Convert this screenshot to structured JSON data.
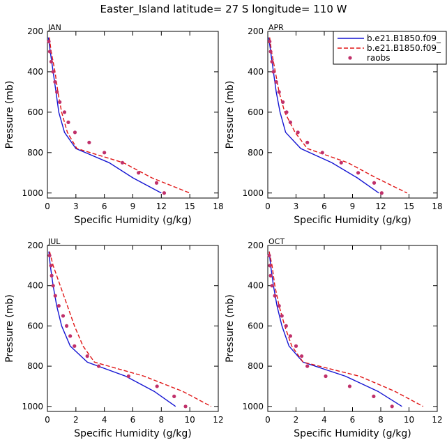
{
  "title": "Easter_Island  latitude= 27 S longitude= 110 W",
  "colors": {
    "model1": "#1414d2",
    "model2": "#e01414",
    "obs": "#c0306a",
    "axis": "#000000"
  },
  "legend": [
    {
      "label": "b.e21.B1850.f09_",
      "style": "solid",
      "color": "#1414d2"
    },
    {
      "label": "b.e21.B1850.f09_",
      "style": "dashed",
      "color": "#e01414"
    },
    {
      "label": "raobs",
      "style": "marker",
      "color": "#c0306a"
    }
  ],
  "chart_data": [
    {
      "type": "line",
      "month": "JAN",
      "xlabel": "Specific Humidity (g/kg)",
      "ylabel": "Pressure (mb)",
      "xlim": [
        0,
        18
      ],
      "ylim": [
        1025,
        200
      ],
      "xticks": [
        0,
        3,
        6,
        9,
        12,
        15,
        18
      ],
      "yticks": [
        200,
        400,
        600,
        800,
        1000
      ],
      "pressure": [
        230,
        300,
        400,
        500,
        600,
        700,
        780,
        850,
        925,
        1000
      ],
      "series": [
        {
          "name": "b.e21.B1850.f09_",
          "style": "solid",
          "values": [
            0.1,
            0.3,
            0.6,
            0.9,
            1.2,
            1.8,
            3.0,
            6.5,
            9.0,
            12.0
          ]
        },
        {
          "name": "b.e21.B1850.f09_",
          "style": "dashed",
          "values": [
            0.2,
            0.4,
            0.8,
            1.1,
            1.5,
            2.1,
            3.1,
            8.0,
            11.0,
            15.0
          ]
        }
      ],
      "raobs": {
        "pressure": [
          250,
          300,
          350,
          400,
          450,
          500,
          550,
          600,
          650,
          700,
          750,
          800,
          850,
          900,
          950,
          1000
        ],
        "values": [
          0.15,
          0.25,
          0.4,
          0.6,
          0.8,
          1.0,
          1.3,
          1.8,
          2.2,
          2.9,
          4.4,
          6.0,
          7.9,
          9.6,
          11.5,
          12.3
        ]
      }
    },
    {
      "type": "line",
      "month": "APR",
      "xlabel": "Specific Humidity (g/kg)",
      "ylabel": "Pressure (mb)",
      "xlim": [
        0,
        18
      ],
      "ylim": [
        1025,
        200
      ],
      "xticks": [
        0,
        3,
        6,
        9,
        12,
        15,
        18
      ],
      "yticks": [
        200,
        400,
        600,
        800,
        1000
      ],
      "pressure": [
        230,
        300,
        400,
        500,
        600,
        700,
        780,
        850,
        925,
        1000
      ],
      "series": [
        {
          "name": "b.e21.B1850.f09_",
          "style": "solid",
          "values": [
            0.1,
            0.3,
            0.6,
            0.9,
            1.3,
            1.9,
            3.5,
            6.8,
            9.5,
            11.8
          ]
        },
        {
          "name": "b.e21.B1850.f09_",
          "style": "dashed",
          "values": [
            0.2,
            0.4,
            0.8,
            1.2,
            1.8,
            2.9,
            4.2,
            8.5,
            11.5,
            14.8
          ]
        }
      ],
      "raobs": {
        "pressure": [
          250,
          300,
          350,
          400,
          450,
          500,
          550,
          600,
          650,
          700,
          750,
          800,
          850,
          900,
          950,
          1000
        ],
        "values": [
          0.2,
          0.3,
          0.45,
          0.6,
          0.9,
          1.2,
          1.6,
          2.0,
          2.4,
          3.2,
          4.2,
          5.8,
          7.8,
          9.6,
          11.3,
          12.1
        ]
      }
    },
    {
      "type": "line",
      "month": "JUL",
      "xlabel": "Specific Humidity (g/kg)",
      "ylabel": "Pressure (mb)",
      "xlim": [
        0,
        12
      ],
      "ylim": [
        1025,
        200
      ],
      "xticks": [
        0,
        2,
        4,
        6,
        8,
        10,
        12
      ],
      "yticks": [
        200,
        400,
        600,
        800,
        1000
      ],
      "pressure": [
        230,
        300,
        400,
        500,
        600,
        700,
        780,
        850,
        925,
        1000
      ],
      "series": [
        {
          "name": "b.e21.B1850.f09_",
          "style": "solid",
          "values": [
            0.1,
            0.2,
            0.4,
            0.65,
            1.0,
            1.6,
            2.8,
            5.5,
            7.5,
            9.0
          ]
        },
        {
          "name": "b.e21.B1850.f09_",
          "style": "dashed",
          "values": [
            0.15,
            0.4,
            0.9,
            1.4,
            1.9,
            2.5,
            3.3,
            6.8,
            9.5,
            11.5
          ]
        }
      ],
      "raobs": {
        "pressure": [
          250,
          300,
          350,
          400,
          450,
          500,
          550,
          600,
          650,
          700,
          750,
          800,
          850,
          900,
          950,
          1000
        ],
        "values": [
          0.15,
          0.25,
          0.3,
          0.4,
          0.55,
          0.8,
          1.1,
          1.35,
          1.6,
          1.9,
          2.8,
          3.6,
          5.7,
          7.7,
          8.9,
          9.7
        ]
      }
    },
    {
      "type": "line",
      "month": "OCT",
      "xlabel": "Specific Humidity (g/kg)",
      "ylabel": "Pressure (mb)",
      "xlim": [
        0,
        12
      ],
      "ylim": [
        1025,
        200
      ],
      "xticks": [
        0,
        2,
        4,
        6,
        8,
        10,
        12
      ],
      "yticks": [
        200,
        400,
        600,
        800,
        1000
      ],
      "pressure": [
        230,
        300,
        400,
        500,
        600,
        700,
        780,
        850,
        925,
        1000
      ],
      "series": [
        {
          "name": "b.e21.B1850.f09_",
          "style": "solid",
          "values": [
            0.1,
            0.2,
            0.4,
            0.65,
            1.0,
            1.5,
            2.5,
            5.5,
            7.8,
            9.5
          ]
        },
        {
          "name": "b.e21.B1850.f09_",
          "style": "dashed",
          "values": [
            0.1,
            0.3,
            0.5,
            0.8,
            1.2,
            1.7,
            2.5,
            6.5,
            9.0,
            11.0
          ]
        }
      ],
      "raobs": {
        "pressure": [
          250,
          300,
          350,
          400,
          450,
          500,
          550,
          600,
          650,
          700,
          750,
          800,
          850,
          900,
          950,
          1000
        ],
        "values": [
          0.1,
          0.15,
          0.2,
          0.3,
          0.5,
          0.8,
          1.0,
          1.3,
          1.6,
          2.0,
          2.4,
          2.8,
          4.1,
          5.8,
          7.5,
          8.8
        ]
      }
    }
  ]
}
